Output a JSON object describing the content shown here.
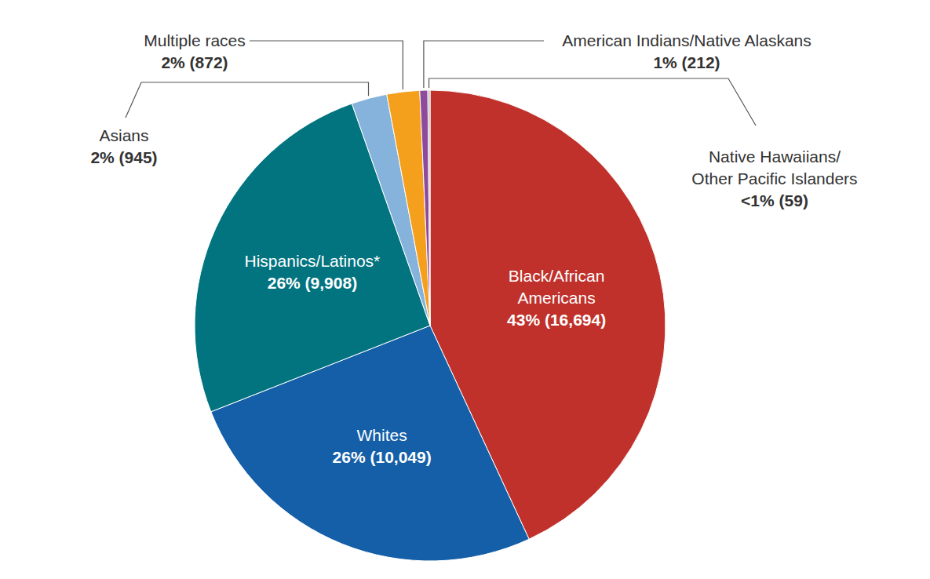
{
  "chart_data": {
    "type": "pie",
    "categories": [
      "Black/African\nAmericans",
      "Whites",
      "Hispanics/Latinos*",
      "Asians",
      "Multiple races",
      "American Indians/Native Alaskans",
      "Native Hawaiians/\nOther Pacific Islanders"
    ],
    "values": [
      16694,
      10049,
      9908,
      945,
      872,
      212,
      59
    ],
    "value_labels": [
      "43% (16,694)",
      "26% (10,049)",
      "26% (9,908)",
      "2% (945)",
      "2% (872)",
      "1% (212)",
      "<1% (59)"
    ],
    "colors": [
      "#c0312b",
      "#155fa8",
      "#027480",
      "#85b3dc",
      "#f5a01d",
      "#8e4a9b",
      "#bdbdbd"
    ],
    "data_labels": true
  }
}
